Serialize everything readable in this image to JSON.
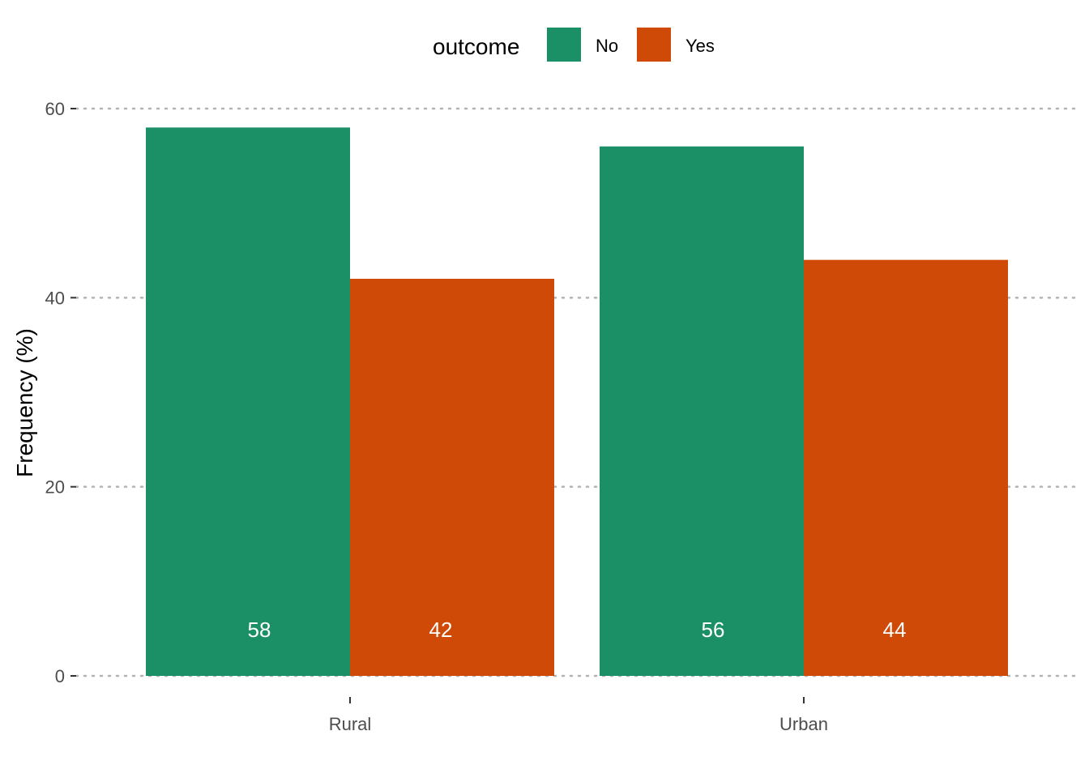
{
  "chart_data": {
    "type": "bar",
    "categories": [
      "Rural",
      "Urban"
    ],
    "series": [
      {
        "name": "No",
        "values": [
          58,
          56
        ],
        "color": "#1b9066"
      },
      {
        "name": "Yes",
        "values": [
          42,
          44
        ],
        "color": "#cf4a07"
      }
    ],
    "data_labels": true,
    "xlabel": "",
    "ylabel": "Frequency (%)",
    "ylim": [
      0,
      60
    ],
    "yticks": [
      0,
      20,
      40,
      60
    ],
    "grid": "horizontal-dotted",
    "legend": {
      "title": "outcome",
      "position": "top",
      "entries": [
        "No",
        "Yes"
      ]
    }
  }
}
